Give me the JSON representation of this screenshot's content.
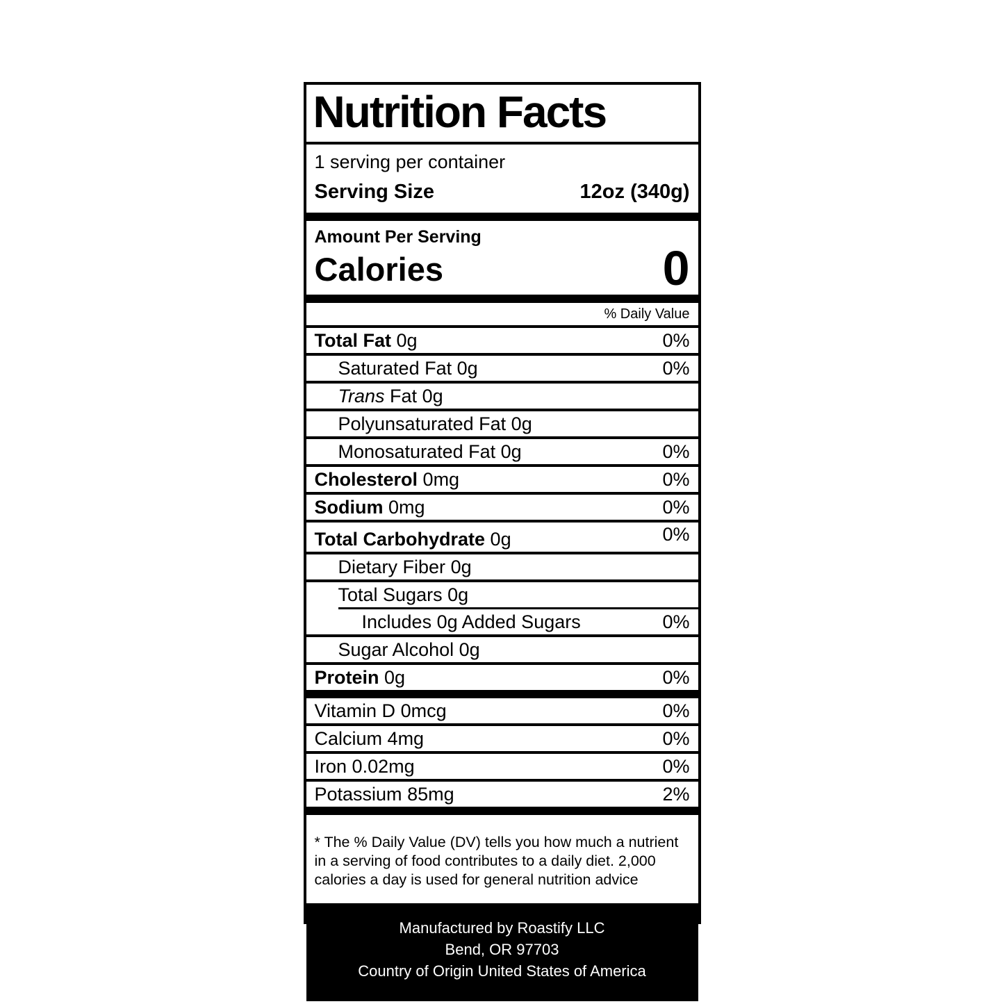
{
  "label": {
    "title": "Nutrition Facts",
    "servings_per_container": "1 serving per container",
    "serving_size": {
      "label": "Serving Size",
      "value": "12oz (340g)"
    },
    "amount_per_serving": "Amount Per Serving",
    "calories": {
      "label": "Calories",
      "value": "0"
    },
    "daily_value_header": "% Daily Value",
    "colors": {
      "background": "#000000",
      "panel": "#ffffff",
      "text": "#000000",
      "footer_text": "#ffffff"
    },
    "rows": [
      {
        "lines": [
          {
            "name": "Total Fat",
            "amount": "0g",
            "bold": true,
            "indent": 0,
            "pct": "0%"
          }
        ]
      },
      {
        "lines": [
          {
            "name": "Saturated Fat",
            "amount": "0g",
            "indent": 1,
            "pct": "0%"
          }
        ]
      },
      {
        "lines": [
          {
            "italic": "Trans",
            "name": "Fat",
            "amount": "0g",
            "indent": 1,
            "pct": ""
          }
        ]
      },
      {
        "lines": [
          {
            "name": "Polyunsaturated Fat",
            "amount": "0g",
            "indent": 1,
            "pct": ""
          }
        ]
      },
      {
        "lines": [
          {
            "name": "Monosaturated Fat",
            "amount": "0g",
            "indent": 1,
            "pct": "0%"
          }
        ]
      },
      {
        "lines": [
          {
            "name": "Cholesterol",
            "amount": "0mg",
            "bold": true,
            "indent": 0,
            "pct": "0%"
          }
        ]
      },
      {
        "lines": [
          {
            "name": "Sodium",
            "amount": "0mg",
            "bold": true,
            "indent": 0,
            "pct": "0%"
          }
        ]
      },
      {
        "lines": [
          {
            "name": "Total Carbohydrate",
            "amount": "0g",
            "bold": true,
            "indent": 0,
            "pct": "0%",
            "pct_raised": true
          }
        ]
      },
      {
        "lines": [
          {
            "name": "Dietary Fiber",
            "amount": "0g",
            "indent": 1,
            "pct": ""
          }
        ]
      },
      {
        "inner_separator": true,
        "lines": [
          {
            "name": "Total Sugars",
            "amount": "0g",
            "indent": 1,
            "pct": ""
          },
          {
            "name": "Includes 0g Added Sugars",
            "amount": "",
            "indent": 2,
            "pct": "0%"
          }
        ]
      },
      {
        "lines": [
          {
            "name": "Sugar Alcohol",
            "amount": "0g",
            "indent": 1,
            "pct": ""
          }
        ]
      },
      {
        "thick_after": true,
        "lines": [
          {
            "name": "Protein",
            "amount": "0g",
            "bold": true,
            "indent": 0,
            "pct": "0%"
          }
        ]
      }
    ],
    "vitamins": [
      {
        "name": "Vitamin D",
        "amount": "0mcg",
        "pct": "0%"
      },
      {
        "name": "Calcium",
        "amount": "4mg",
        "pct": "0%"
      },
      {
        "name": "Iron",
        "amount": "0.02mg",
        "pct": "0%"
      },
      {
        "name": "Potassium",
        "amount": "85mg",
        "pct": "2%",
        "thick_after": true
      }
    ],
    "footnote": "* The % Daily Value (DV) tells you how much a nutrient in a serving of food contributes to a daily diet. 2,000 calories a day is used for general nutrition advice",
    "footer_lines": [
      "Manufactured by Roastify LLC",
      "Bend, OR 97703",
      "Country of Origin United States of America"
    ]
  }
}
